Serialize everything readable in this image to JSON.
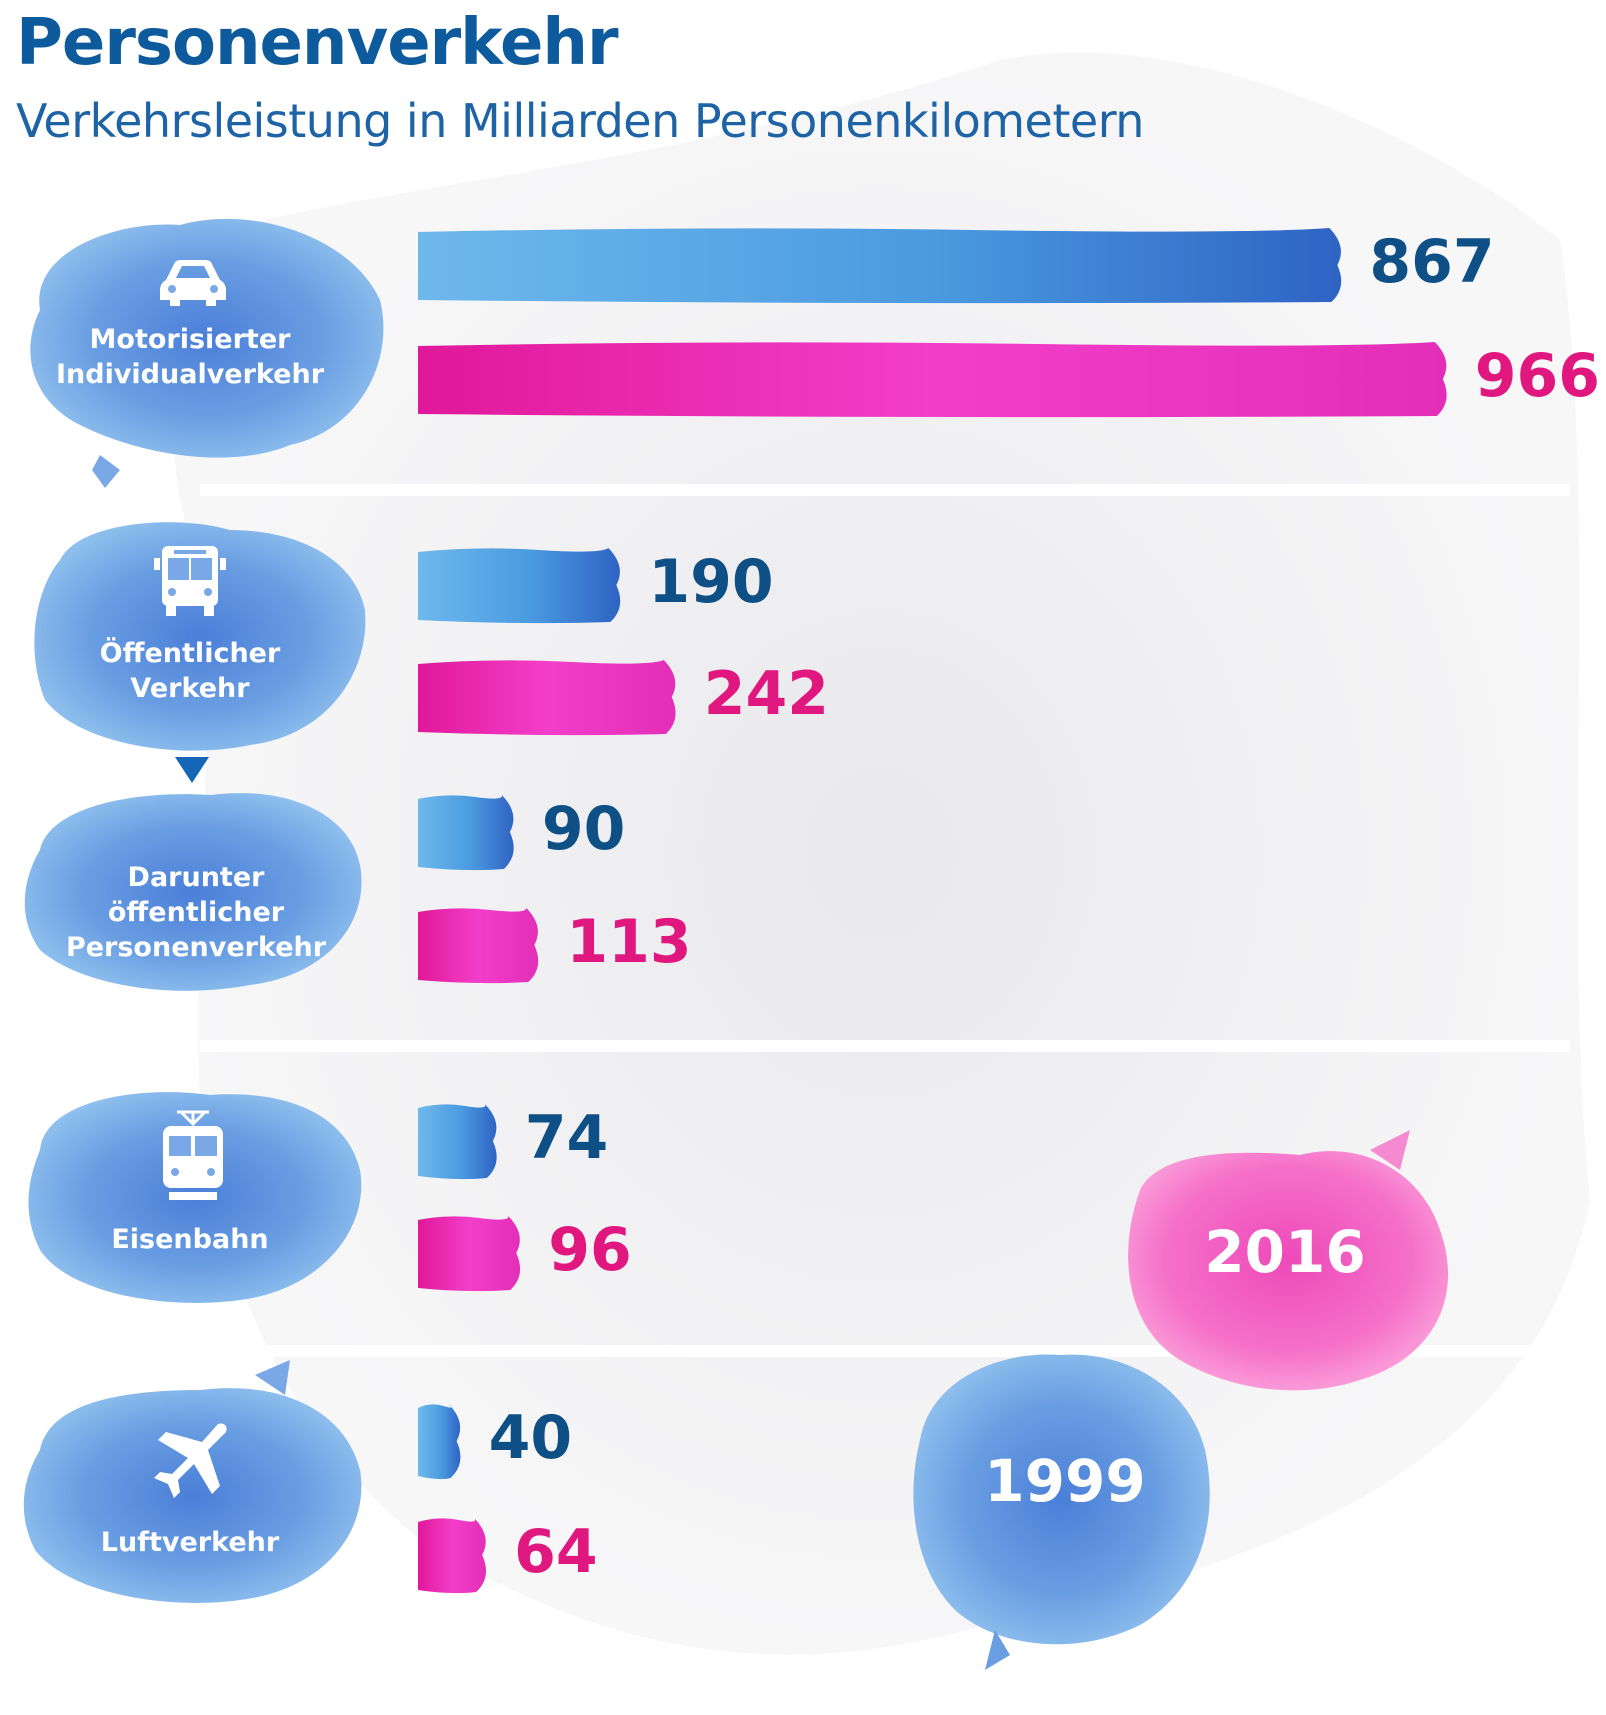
{
  "colors": {
    "y1999": "#0e4f86",
    "y2016": "#e0177f",
    "title": "#0d5a9c"
  },
  "chart_data": {
    "type": "bar",
    "title": "Personenverkehr",
    "subtitle": "Verkehrsleistung in Milliarden Personenkilometern",
    "categories": [
      "Motorisierter Individualverkehr",
      "Öffentlicher Verkehr",
      "Darunter öffentlicher Personenverkehr",
      "Eisenbahn",
      "Luftverkehr"
    ],
    "category_lines": [
      [
        "Motorisierter",
        "Individualverkehr"
      ],
      [
        "Öffentlicher",
        "Verkehr"
      ],
      [
        "Darunter  öffentlicher",
        "Personenverkehr"
      ],
      [
        "Eisenbahn"
      ],
      [
        "Luftverkehr"
      ]
    ],
    "category_icons": [
      "car-icon",
      "bus-icon",
      "",
      "tram-icon",
      "airplane-icon"
    ],
    "series": [
      {
        "name": "1999",
        "color": "#3b8fd9",
        "values": [
          867,
          190,
          90,
          74,
          40
        ]
      },
      {
        "name": "2016",
        "color": "#e8259a",
        "values": [
          966,
          242,
          113,
          96,
          64
        ]
      }
    ],
    "legend": [
      "2016",
      "1999"
    ],
    "legend_placement": "bottom-right"
  }
}
